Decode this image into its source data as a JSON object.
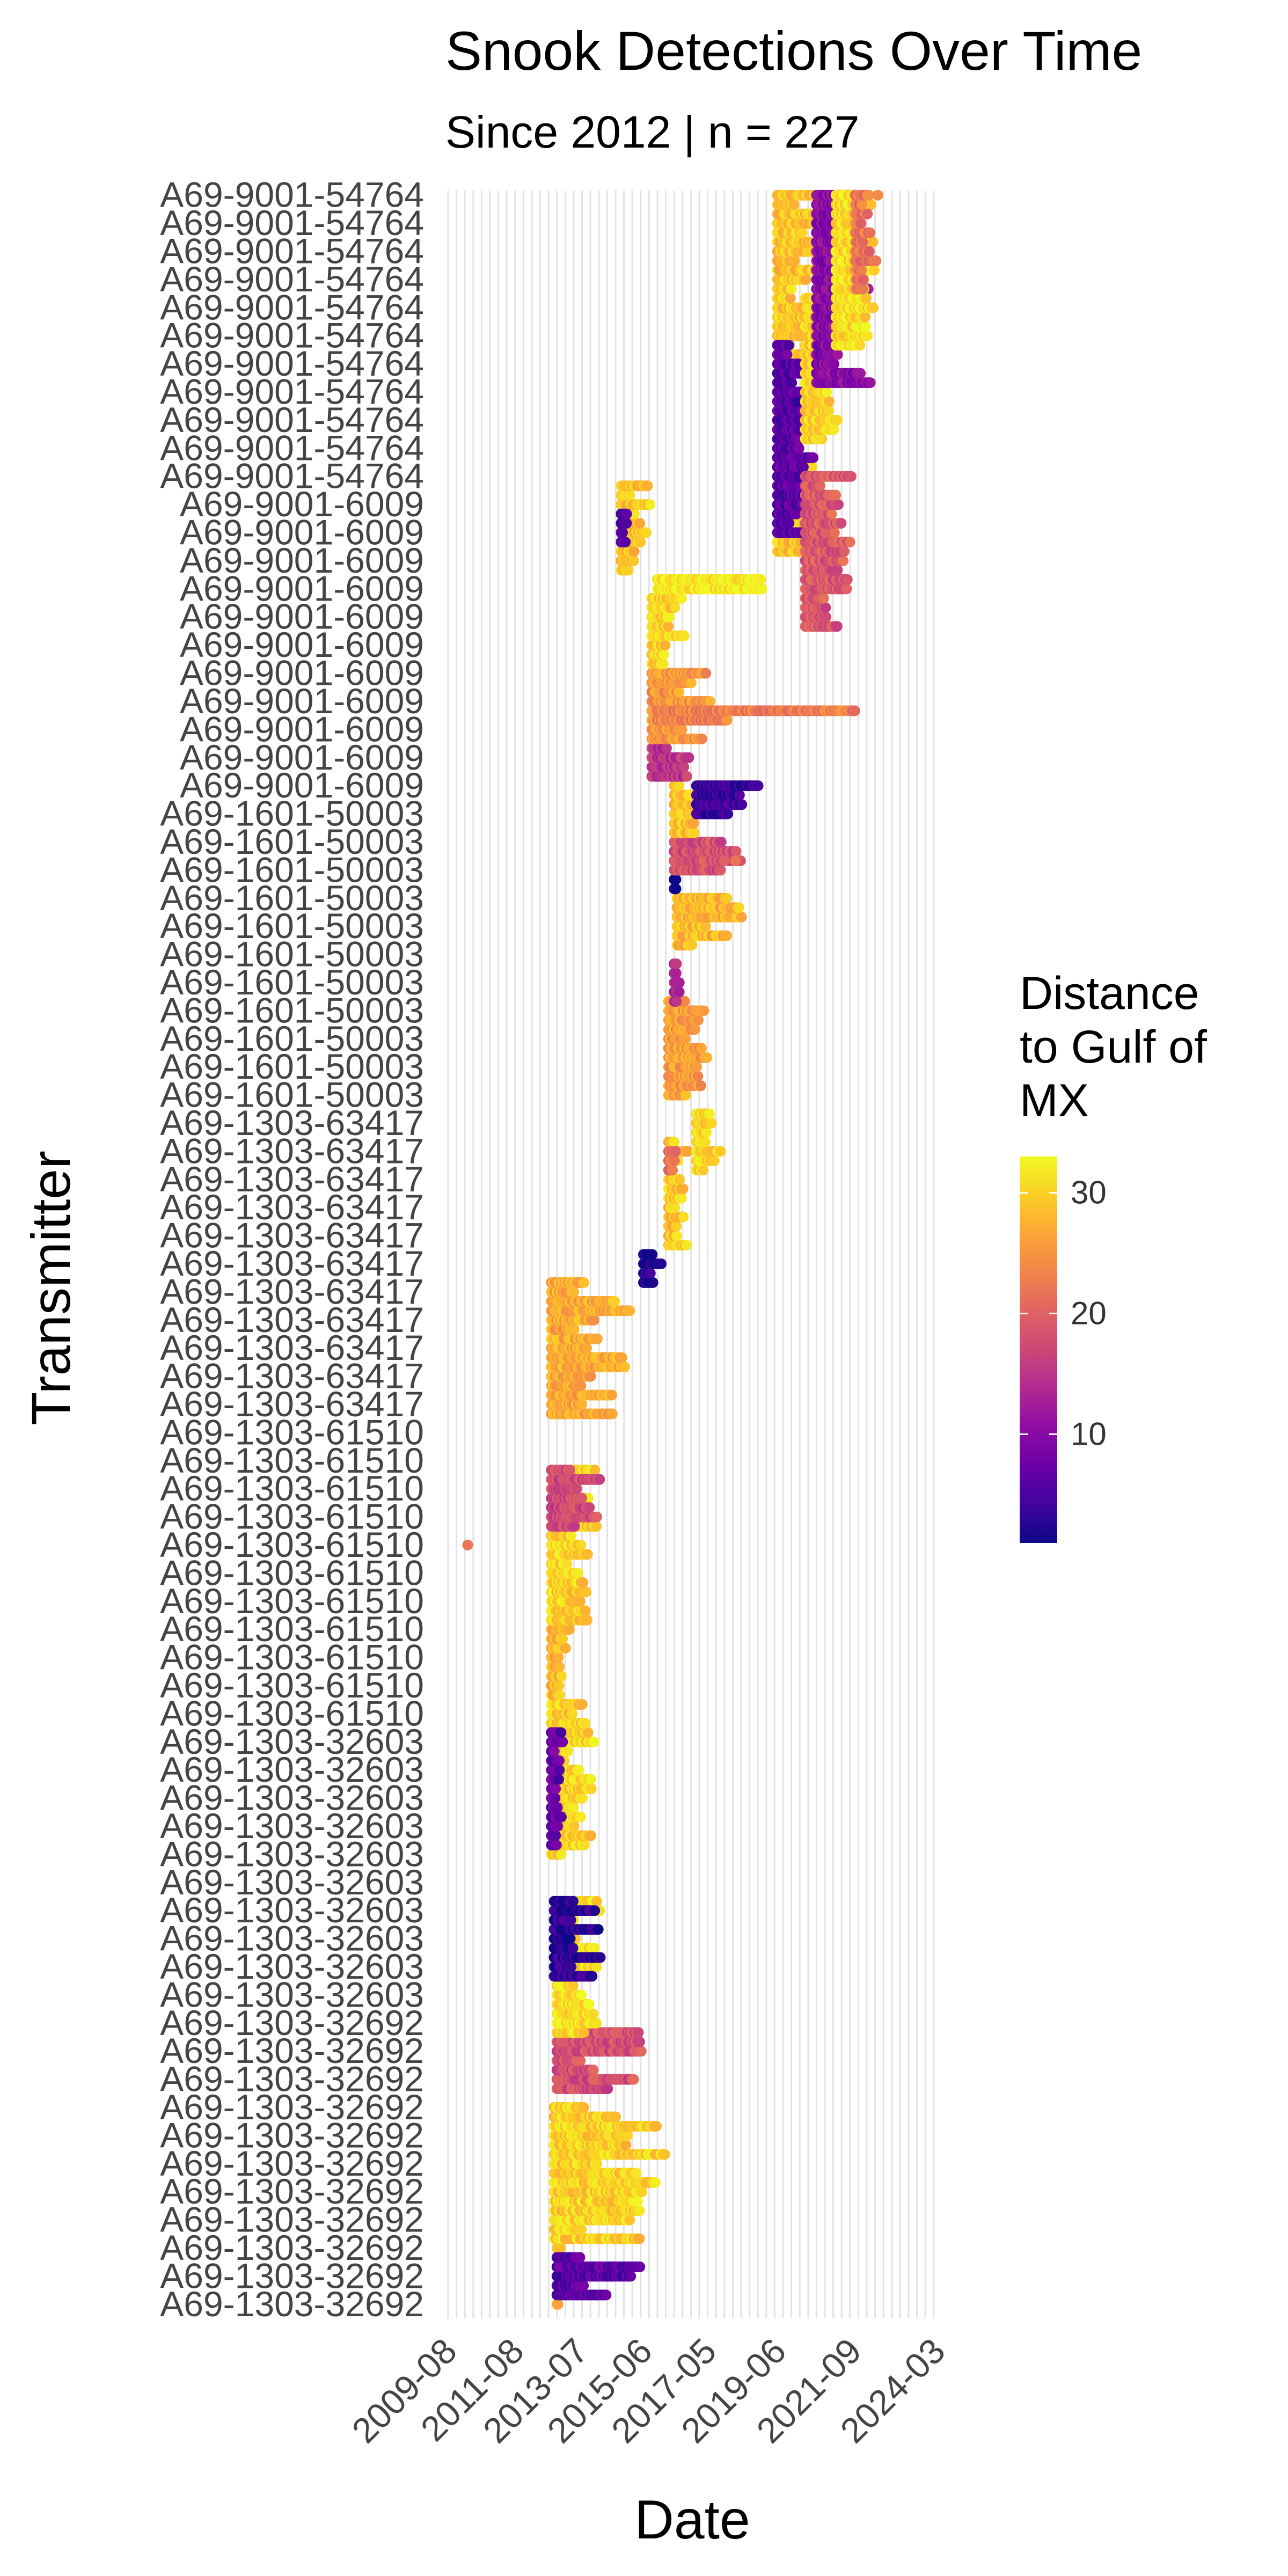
{
  "chart_data": {
    "type": "scatter",
    "title": "Snook Detections Over Time",
    "subtitle": "Since 2012 | n = 227",
    "xlabel": "Date",
    "ylabel": "Transmitter",
    "transmitter_count": 227,
    "x_tick_labels": [
      "2009-08",
      "2011-08",
      "2013-07",
      "2015-06",
      "2017-05",
      "2019-06",
      "2021-09",
      "2024-03"
    ],
    "y_tick_labels_legible": [
      "A69-9001-54764",
      "A69-9001-6009",
      "A69-1601-50003",
      "A69-1303-63417",
      "A69-1303-61510",
      "A69-1303-32603",
      "A69-1303-32692"
    ],
    "legend": {
      "title": "Distance to Gulf of MX",
      "position": "right",
      "ticks": [
        10,
        20,
        30
      ],
      "range": [
        1,
        33
      ],
      "palette": "plasma",
      "colors": [
        "#0d0887",
        "#41049d",
        "#6a00a8",
        "#8f0da4",
        "#b12a90",
        "#cc4778",
        "#e16462",
        "#f2844b",
        "#fca636",
        "#fcce25",
        "#f0f921"
      ]
    },
    "groups": [
      {
        "x_start": "2012-11",
        "x_end": "2013-01",
        "rows": [
          1,
          14
        ],
        "distance": 28
      },
      {
        "x_start": "2012-11",
        "x_end": "2015-08",
        "rows": [
          2,
          6
        ],
        "distance": 6
      },
      {
        "x_start": "2012-10",
        "x_end": "2016-03",
        "rows": [
          8,
          22
        ],
        "distance": 30
      },
      {
        "x_start": "2012-11",
        "x_end": "2015-09",
        "rows": [
          24,
          30
        ],
        "distance": 18
      },
      {
        "x_start": "2012-11",
        "x_end": "2014-03",
        "rows": [
          30,
          44
        ],
        "distance": 31
      },
      {
        "x_start": "2012-10",
        "x_end": "2014-06",
        "rows": [
          36,
          44
        ],
        "distance": 3
      },
      {
        "x_start": "2012-09",
        "x_end": "2014-01",
        "rows": [
          49,
          65
        ],
        "distance": 30
      },
      {
        "x_start": "2012-09",
        "x_end": "2013-02",
        "rows": [
          50,
          62
        ],
        "distance": 7
      },
      {
        "x_start": "2012-09",
        "x_end": "2013-06",
        "rows": [
          66,
          75
        ],
        "distance": 28
      },
      {
        "x_start": "2012-09",
        "x_end": "2014-03",
        "rows": [
          74,
          90
        ],
        "distance": 30
      },
      {
        "x_start": "2012-09",
        "x_end": "2014-05",
        "rows": [
          84,
          90
        ],
        "distance": 17
      },
      {
        "x_start": "2012-09",
        "x_end": "2015-06",
        "rows": [
          96,
          110
        ],
        "distance": 27
      },
      {
        "x_start": "2015-06",
        "x_end": "2016-03",
        "rows": [
          110,
          113
        ],
        "distance": 2
      },
      {
        "x_start": "2016-03",
        "x_end": "2016-11",
        "rows": [
          114,
          125
        ],
        "distance": 29
      },
      {
        "x_start": "2016-03",
        "x_end": "2016-07",
        "rows": [
          122,
          124
        ],
        "distance": 22
      },
      {
        "x_start": "2017-01",
        "x_end": "2018-01",
        "rows": [
          122,
          128
        ],
        "distance": 30
      },
      {
        "x_start": "2016-03",
        "x_end": "2017-06",
        "rows": [
          130,
          140
        ],
        "distance": 26
      },
      {
        "x_start": "2016-05",
        "x_end": "2016-09",
        "rows": [
          140,
          144
        ],
        "distance": 14
      },
      {
        "x_start": "2016-06",
        "x_end": "2018-06",
        "rows": [
          146,
          151
        ],
        "distance": 28
      },
      {
        "x_start": "2016-05",
        "x_end": "2016-07",
        "rows": [
          152,
          156
        ],
        "distance": 2
      },
      {
        "x_start": "2016-05",
        "x_end": "2019-11",
        "rows": [
          154,
          157
        ],
        "distance": 18
      },
      {
        "x_start": "2016-05",
        "x_end": "2017-01",
        "rows": [
          158,
          163
        ],
        "distance": 29
      },
      {
        "x_start": "2017-01",
        "x_end": "2019-08",
        "rows": [
          160,
          163
        ],
        "distance": 4
      },
      {
        "x_start": "2015-09",
        "x_end": "2017-01",
        "rows": [
          164,
          167
        ],
        "distance": 15
      },
      {
        "x_start": "2015-09",
        "x_end": "2017-09",
        "rows": [
          168,
          175
        ],
        "distance": 25
      },
      {
        "x_start": "2015-11",
        "x_end": "2022-03",
        "rows": [
          170,
          171
        ],
        "distance": 23
      },
      {
        "x_start": "2015-09",
        "x_end": "2016-10",
        "rows": [
          176,
          183
        ],
        "distance": 30
      },
      {
        "x_start": "2015-11",
        "x_end": "2019-06",
        "rows": [
          184,
          185
        ],
        "distance": 32
      },
      {
        "x_start": "2014-10",
        "x_end": "2015-09",
        "rows": [
          186,
          195
        ],
        "distance": 29
      },
      {
        "x_start": "2014-10",
        "x_end": "2015-01",
        "rows": [
          189,
          192
        ],
        "distance": 5
      },
      {
        "x_start": "2019-06",
        "x_end": "2020-11",
        "rows": [
          188,
          226
        ],
        "distance": 29
      },
      {
        "x_start": "2019-06",
        "x_end": "2020-08",
        "rows": [
          190,
          210
        ],
        "distance": 6
      },
      {
        "x_start": "2020-04",
        "x_end": "2021-10",
        "rows": [
          180,
          196
        ],
        "distance": 19
      },
      {
        "x_start": "2020-04",
        "x_end": "2021-05",
        "rows": [
          200,
          215
        ],
        "distance": 30
      },
      {
        "x_start": "2020-08",
        "x_end": "2022-05",
        "rows": [
          206,
          226
        ],
        "distance": 10
      },
      {
        "x_start": "2021-03",
        "x_end": "2022-06",
        "rows": [
          210,
          226
        ],
        "distance": 31
      },
      {
        "x_start": "2021-10",
        "x_end": "2022-06",
        "rows": [
          216,
          226
        ],
        "distance": 22
      }
    ],
    "outliers": [
      {
        "x": "2010-03",
        "row": 82,
        "distance": 22
      },
      {
        "x": "2017-11",
        "row": 155,
        "distance": 20
      },
      {
        "x": "2018-03",
        "row": 155,
        "distance": 22
      },
      {
        "x": "2022-06",
        "row": 226,
        "distance": 24
      }
    ]
  }
}
